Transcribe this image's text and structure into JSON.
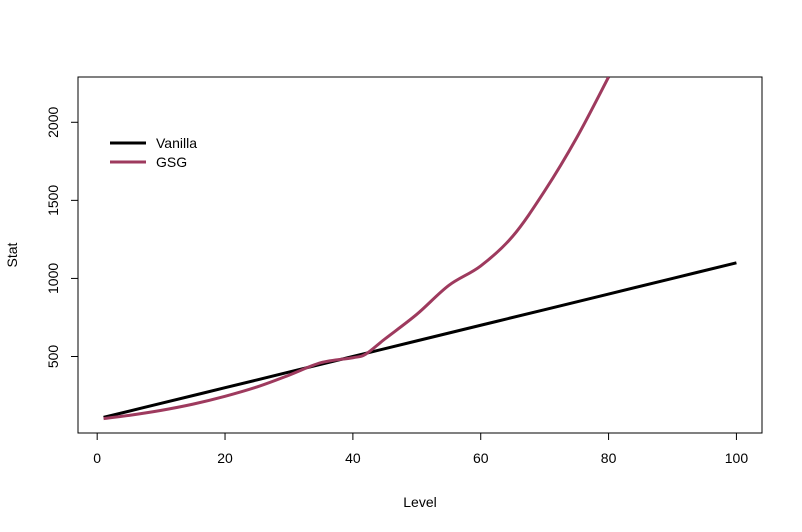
{
  "chart_data": {
    "type": "line",
    "title": "",
    "xlabel": "Level",
    "ylabel": "Stat",
    "xlim": [
      -3,
      104
    ],
    "ylim": [
      10,
      2290
    ],
    "x_ticks": [
      0,
      20,
      40,
      60,
      80,
      100
    ],
    "y_ticks": [
      500,
      1000,
      1500,
      2000
    ],
    "grid": false,
    "legend_position": "top-left",
    "series": [
      {
        "name": "Vanilla",
        "color": "#000000",
        "x": [
          1,
          10,
          20,
          30,
          40,
          50,
          60,
          70,
          80,
          90,
          100
        ],
        "y": [
          110,
          200,
          300,
          400,
          500,
          600,
          700,
          800,
          900,
          1000,
          1100
        ]
      },
      {
        "name": "GSG",
        "color": "#9E3A5E",
        "x": [
          1,
          5,
          10,
          15,
          20,
          25,
          30,
          35,
          40,
          42,
          45,
          50,
          55,
          60,
          65,
          70,
          75,
          80
        ],
        "y": [
          102,
          123,
          155,
          195,
          245,
          305,
          380,
          460,
          492,
          515,
          612,
          770,
          955,
          1080,
          1270,
          1560,
          1900,
          2290
        ]
      }
    ]
  }
}
